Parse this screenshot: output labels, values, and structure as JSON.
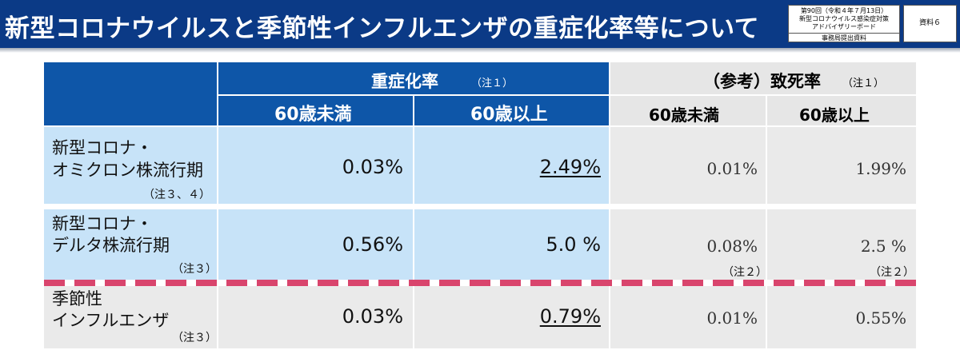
{
  "header": {
    "title": "新型コロナウイルスと季節性インフルエンザの重症化率等について",
    "meta_line1": "第90回（令和４年７月13日）",
    "meta_line2": "新型コロナウイルス感染症対策",
    "meta_line3": "アドバイザリーボード",
    "meta_line4": "事務局提出資料",
    "doc_label": "資料６"
  },
  "table": {
    "group1": {
      "label": "重症化率",
      "note": "（注１）"
    },
    "group2": {
      "label": "（参考）致死率",
      "note": "（注１）"
    },
    "col_under60": "60歳未満",
    "col_over60": "60歳以上",
    "col_under60_ref": "60歳未満",
    "col_over60_ref": "60歳以上",
    "rows": [
      {
        "line1": "新型コロナ・",
        "line2": "オミクロン株流行期",
        "note": "（注３、４）",
        "severe_under60": "0.03%",
        "severe_over60": "2.49%",
        "fatal_under60": "0.01%",
        "fatal_over60": "1.99%"
      },
      {
        "line1": "新型コロナ・",
        "line2": "デルタ株流行期",
        "note": "（注３）",
        "severe_under60": "0.56%",
        "severe_over60": "5.0 %",
        "fatal_under60": "0.08%",
        "fatal_over60": "2.5 %",
        "fatal_under60_note": "（注２）",
        "fatal_over60_note": "（注２）"
      },
      {
        "line1": "季節性",
        "line2": "インフルエンザ",
        "note": "（注３）",
        "severe_under60": "0.03%",
        "severe_over60": "0.79%",
        "fatal_under60": "0.01%",
        "fatal_over60": "0.55%"
      }
    ]
  },
  "colors": {
    "header_bg": "#0b3a86",
    "table_header_blue": "#0e56a8",
    "cell_blue": "#c7e3f8",
    "cell_gray": "#eaeaea",
    "divider_pink": "#d9456d"
  }
}
